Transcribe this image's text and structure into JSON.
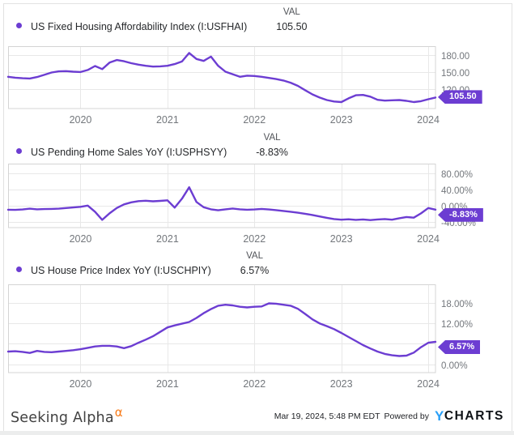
{
  "legend_val_header": "VAL",
  "colors": {
    "line": "#6c3dd2",
    "badge_bg": "#6c3dd2",
    "grid": "#e8e8e8",
    "plot_border": "#d4d4d4",
    "axis_text": "#73777c",
    "legend_text": "#26282b",
    "alpha_orange": "#f87c1b",
    "ycharts_blue": "#2aa0f8"
  },
  "chart_data": [
    {
      "type": "line",
      "name": "US Fixed Housing Affordability Index (I:USFHAI)",
      "latest_value_label": "105.50",
      "latest_value": 105.5,
      "x_start": "2019-03",
      "x_end": "2024-02",
      "x_tick_labels": [
        "2020",
        "2021",
        "2022",
        "2023",
        "2024"
      ],
      "x_tick_month_indices": [
        10,
        22,
        34,
        46,
        58
      ],
      "y_tick_labels": [
        "180.00",
        "150.00",
        "120.00"
      ],
      "y_tick_values": [
        180,
        150,
        120
      ],
      "y_grid_values": [
        180,
        150,
        120
      ],
      "ylim": [
        86,
        196
      ],
      "grid": true,
      "values": [
        142,
        140.5,
        139.5,
        139,
        141.5,
        145.5,
        149.5,
        151.5,
        152,
        151,
        150.5,
        154,
        161,
        155.5,
        167,
        171.5,
        169.5,
        166,
        163.5,
        161.5,
        160,
        160.5,
        161.5,
        164.5,
        169,
        184,
        173.5,
        170,
        177.5,
        161.5,
        151,
        146.5,
        142,
        144,
        143.5,
        142,
        140,
        138,
        135.5,
        131.5,
        126,
        118.5,
        111,
        105.5,
        101,
        98.5,
        97.5,
        104,
        109.5,
        110,
        107,
        101.5,
        100,
        100.5,
        101,
        99.5,
        97.5,
        99,
        102.5,
        105.5
      ]
    },
    {
      "type": "line",
      "name": "US Pending Home Sales YoY (I:USPHSYY)",
      "latest_value_label": "-8.83%",
      "latest_value": -8.83,
      "x_start": "2019-03",
      "x_end": "2024-02",
      "x_tick_labels": [
        "2020",
        "2021",
        "2022",
        "2023",
        "2024"
      ],
      "x_tick_month_indices": [
        10,
        22,
        34,
        46,
        58
      ],
      "y_tick_labels": [
        "80.00%",
        "40.00%",
        "0.00%",
        "-40.00%"
      ],
      "y_tick_values": [
        80,
        40,
        0,
        -40
      ],
      "y_grid_values": [
        80,
        40,
        0,
        -40
      ],
      "ylim": [
        -53,
        104
      ],
      "grid": true,
      "values": [
        -9,
        -9.5,
        -8.5,
        -6.5,
        -8,
        -7.5,
        -7,
        -6.5,
        -5,
        -3.5,
        -2,
        1,
        -14,
        -34,
        -18,
        -5,
        4,
        9,
        12,
        13,
        11.5,
        12.5,
        14,
        -4,
        18,
        46,
        10,
        -3,
        -8,
        -10.5,
        -8,
        -6,
        -8,
        -9,
        -8.5,
        -7,
        -8.5,
        -10,
        -12,
        -14,
        -16.5,
        -19,
        -22,
        -25.5,
        -29,
        -32,
        -33.5,
        -32.5,
        -34,
        -33,
        -34.5,
        -33,
        -32,
        -33.5,
        -30,
        -27,
        -28.5,
        -18,
        -5,
        -8.83
      ]
    },
    {
      "type": "line",
      "name": "US House Price Index YoY (I:USCHPIY)",
      "latest_value_label": "6.57%",
      "latest_value": 6.57,
      "x_start": "2019-03",
      "x_end": "2024-02",
      "x_tick_labels": [
        "2020",
        "2021",
        "2022",
        "2023",
        "2024"
      ],
      "x_tick_month_indices": [
        10,
        22,
        34,
        46,
        58
      ],
      "y_tick_labels": [
        "18.00%",
        "12.00%",
        "0.00%"
      ],
      "y_tick_values": [
        18,
        12,
        0
      ],
      "y_grid_values": [
        18,
        12,
        6,
        0
      ],
      "ylim": [
        -2.5,
        23.5
      ],
      "grid": true,
      "values": [
        3.7,
        3.8,
        3.6,
        3.3,
        3.9,
        3.6,
        3.5,
        3.7,
        3.9,
        4.1,
        4.4,
        4.8,
        5.2,
        5.4,
        5.4,
        5.2,
        4.7,
        5.3,
        6.3,
        7.2,
        8.2,
        9.5,
        10.8,
        11.4,
        11.9,
        12.4,
        13.6,
        15,
        16.2,
        17.2,
        17.5,
        17.3,
        16.9,
        16.7,
        16.9,
        17,
        17.9,
        17.8,
        17.5,
        17.2,
        16.3,
        14.8,
        13.2,
        12,
        11.2,
        10.3,
        9.2,
        8,
        6.8,
        5.6,
        4.6,
        3.7,
        3,
        2.6,
        2.4,
        2.5,
        3.4,
        5,
        6.3,
        6.57
      ]
    }
  ],
  "footer": {
    "brand": "Seeking Alpha",
    "brand_sup": "α",
    "timestamp": "Mar 19, 2024, 5:48 PM EDT",
    "powered_by": "Powered by",
    "ycharts_y": "Y",
    "ycharts_rest": "CHARTS"
  }
}
